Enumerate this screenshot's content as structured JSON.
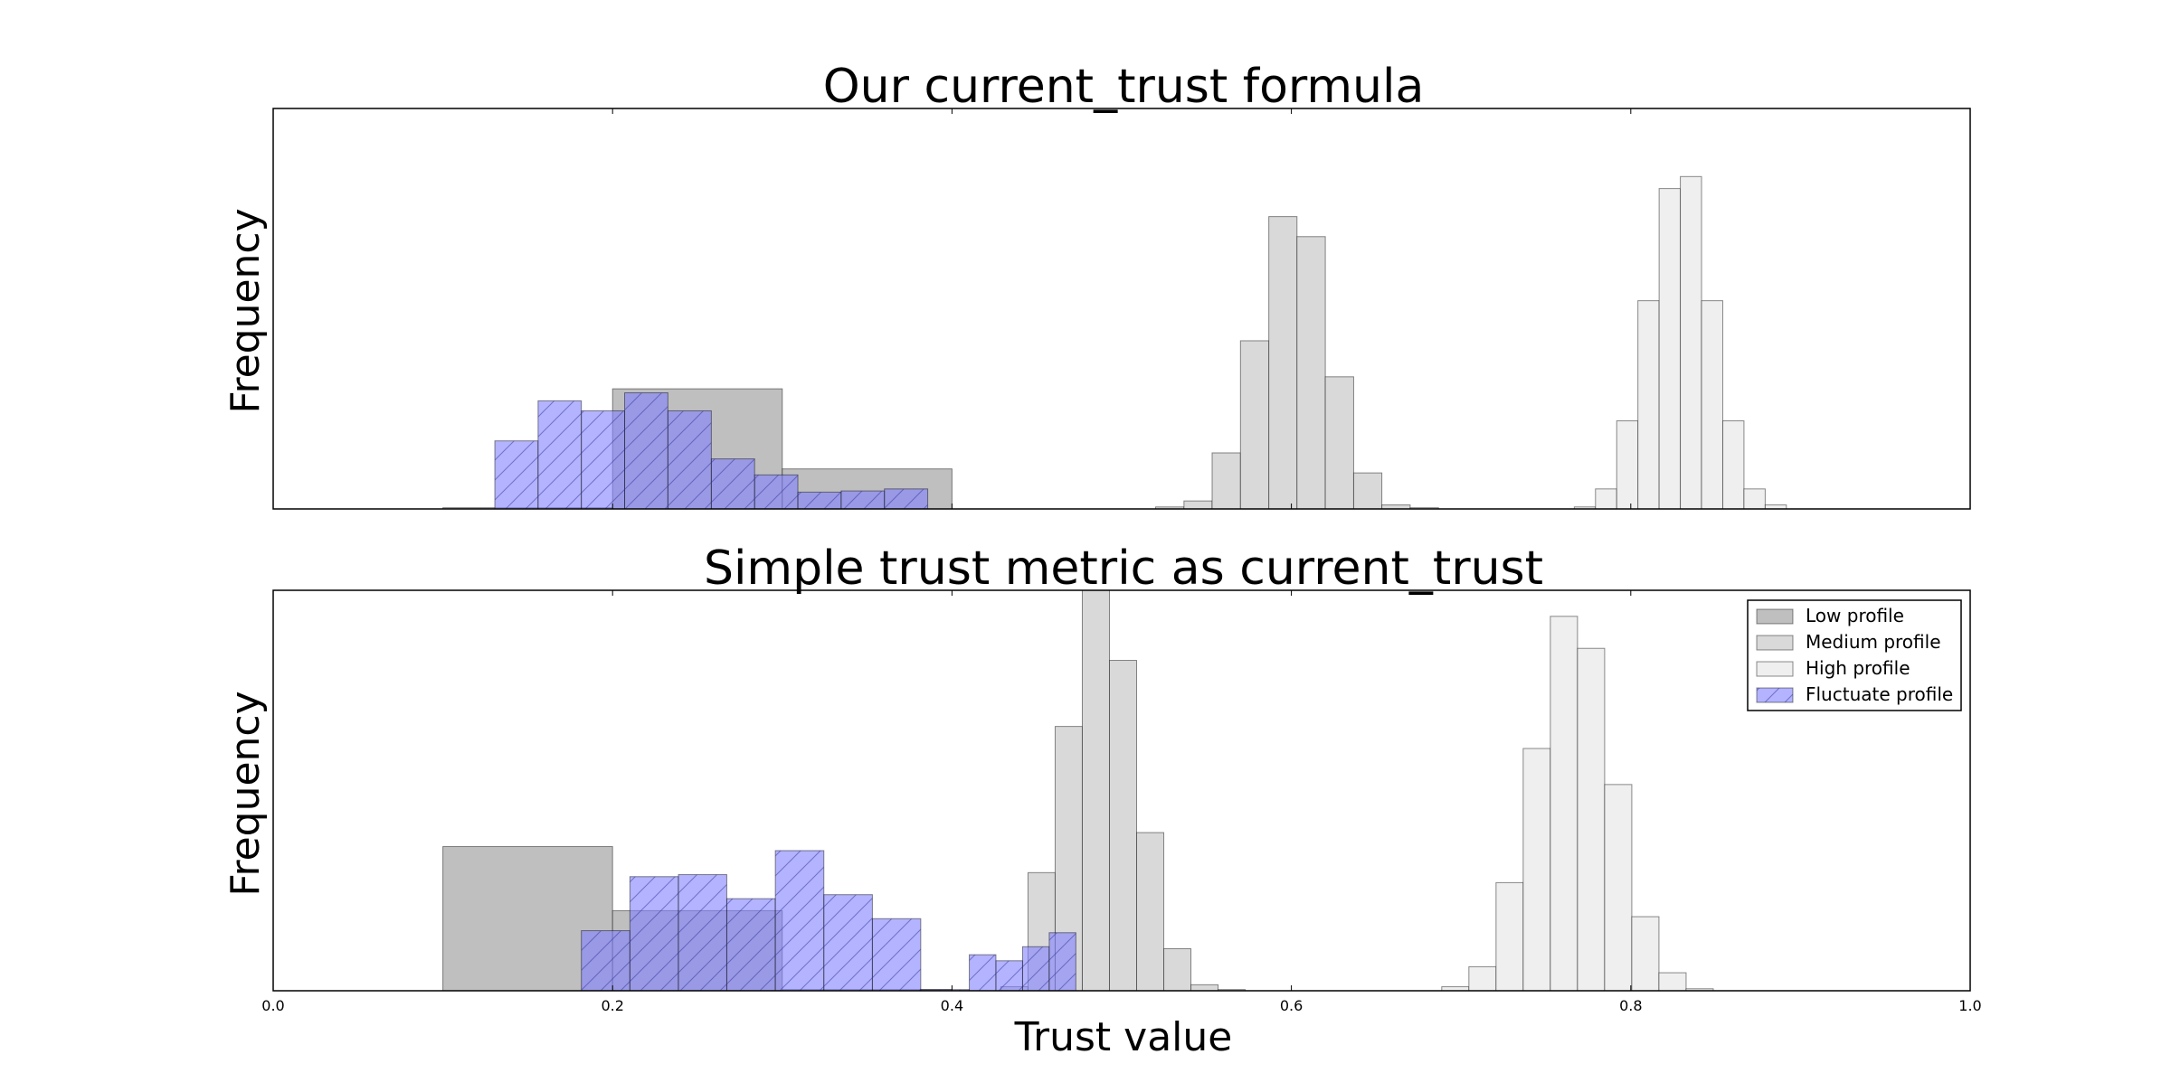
{
  "chart_data": [
    {
      "type": "histogram",
      "title": "Our current_trust formula",
      "xlabel": "",
      "ylabel": "Frequency",
      "xlim": [
        0.0,
        1.0
      ],
      "ylim": [
        0,
        100
      ],
      "show_xticks": false,
      "series": [
        {
          "name": "Low profile",
          "color": "#bfbfbf",
          "hatch": false,
          "bins": [
            [
              0.1,
              0.2,
              0.3
            ],
            [
              0.2,
              0.3,
              30
            ],
            [
              0.3,
              0.4,
              10
            ]
          ]
        },
        {
          "name": "Medium profile",
          "color": "#d9d9d9",
          "hatch": false,
          "bins": [
            [
              0.52,
              0.5367,
              0.5
            ],
            [
              0.5367,
              0.5533,
              2
            ],
            [
              0.5533,
              0.57,
              14
            ],
            [
              0.57,
              0.5867,
              42
            ],
            [
              0.5867,
              0.6033,
              73
            ],
            [
              0.6033,
              0.62,
              68
            ],
            [
              0.62,
              0.6367,
              33
            ],
            [
              0.6367,
              0.6533,
              9
            ],
            [
              0.6533,
              0.67,
              1
            ],
            [
              0.67,
              0.6867,
              0.3
            ]
          ]
        },
        {
          "name": "High profile",
          "color": "#efefef",
          "hatch": false,
          "bins": [
            [
              0.7667,
              0.7792,
              0.5
            ],
            [
              0.7792,
              0.7917,
              5
            ],
            [
              0.7917,
              0.8042,
              22
            ],
            [
              0.8042,
              0.8167,
              52
            ],
            [
              0.8167,
              0.8292,
              80
            ],
            [
              0.8292,
              0.8417,
              83
            ],
            [
              0.8417,
              0.8542,
              52
            ],
            [
              0.8542,
              0.8667,
              22
            ],
            [
              0.8667,
              0.8792,
              5
            ],
            [
              0.8792,
              0.8917,
              1
            ]
          ]
        },
        {
          "name": "Fluctuate profile",
          "color": "#8080ff",
          "hatch": true,
          "bins": [
            [
              0.1306,
              0.1561,
              17
            ],
            [
              0.1561,
              0.1816,
              27
            ],
            [
              0.1816,
              0.2071,
              24.5
            ],
            [
              0.2071,
              0.2326,
              29
            ],
            [
              0.2326,
              0.2582,
              24.5
            ],
            [
              0.2582,
              0.2837,
              12.5
            ],
            [
              0.2837,
              0.3092,
              8.5
            ],
            [
              0.3092,
              0.3347,
              4.2
            ],
            [
              0.3347,
              0.3602,
              4.5
            ],
            [
              0.3602,
              0.3857,
              5
            ]
          ]
        }
      ]
    },
    {
      "type": "histogram",
      "title": "Simple trust metric as current_trust",
      "xlabel": "Trust value",
      "ylabel": "Frequency",
      "xlim": [
        0.0,
        1.0
      ],
      "ylim": [
        0,
        100
      ],
      "show_xticks": true,
      "xticks": [
        "0.0",
        "0.2",
        "0.4",
        "0.6",
        "0.8",
        "1.0"
      ],
      "legend": {
        "position": "upper right",
        "entries": [
          "Low profile",
          "Medium profile",
          "High profile",
          "Fluctuate profile"
        ]
      },
      "series": [
        {
          "name": "Low profile",
          "color": "#bfbfbf",
          "hatch": false,
          "bins": [
            [
              0.1,
              0.2,
              36
            ],
            [
              0.2,
              0.3,
              20
            ],
            [
              0.3,
              0.4,
              0.3
            ]
          ]
        },
        {
          "name": "Medium profile",
          "color": "#d9d9d9",
          "hatch": false,
          "bins": [
            [
              0.4288,
              0.4448,
              1
            ],
            [
              0.4448,
              0.4608,
              29.5
            ],
            [
              0.4608,
              0.4768,
              66
            ],
            [
              0.4768,
              0.4928,
              100
            ],
            [
              0.4928,
              0.5088,
              82.5
            ],
            [
              0.5088,
              0.5248,
              39.5
            ],
            [
              0.5248,
              0.5408,
              10.5
            ],
            [
              0.5408,
              0.5568,
              1.5
            ],
            [
              0.5568,
              0.5728,
              0.3
            ]
          ]
        },
        {
          "name": "High profile",
          "color": "#efefef",
          "hatch": false,
          "bins": [
            [
              0.6886,
              0.7046,
              1
            ],
            [
              0.7046,
              0.7206,
              6
            ],
            [
              0.7206,
              0.7366,
              27
            ],
            [
              0.7366,
              0.7526,
              60.5
            ],
            [
              0.7526,
              0.7686,
              93.5
            ],
            [
              0.7686,
              0.7846,
              85.5
            ],
            [
              0.7846,
              0.8006,
              51.5
            ],
            [
              0.8006,
              0.8166,
              18.5
            ],
            [
              0.8166,
              0.8326,
              4.5
            ],
            [
              0.8326,
              0.8486,
              0.5
            ]
          ]
        },
        {
          "name": "Fluctuate profile",
          "color": "#8080ff",
          "hatch": true,
          "bins": [
            [
              0.1816,
              0.2102,
              15
            ],
            [
              0.2102,
              0.2388,
              28.5
            ],
            [
              0.2388,
              0.2673,
              29
            ],
            [
              0.2673,
              0.2959,
              23
            ],
            [
              0.2959,
              0.3245,
              35
            ],
            [
              0.3245,
              0.3531,
              24
            ],
            [
              0.3531,
              0.3816,
              18
            ],
            [
              0.3816,
              0.4102,
              0.3
            ],
            [
              0.4102,
              0.4259,
              9
            ],
            [
              0.4259,
              0.4416,
              7.5
            ],
            [
              0.4416,
              0.4573,
              11
            ],
            [
              0.4573,
              0.473,
              14.5
            ]
          ]
        }
      ]
    }
  ]
}
